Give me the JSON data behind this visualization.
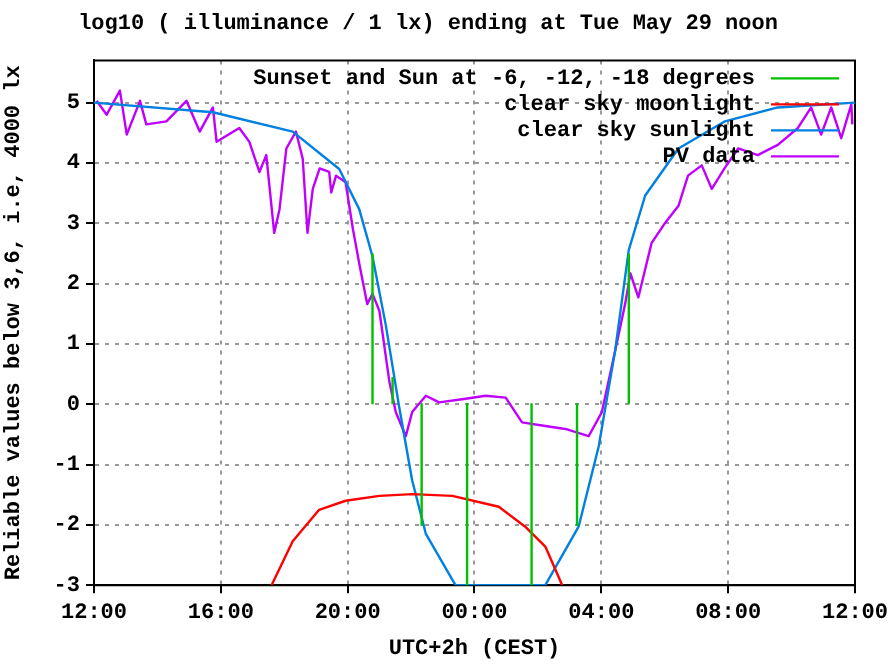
{
  "chart_data": {
    "type": "line",
    "title": "log10 ( illuminance / 1 lx) ending at Tue May 29 noon",
    "xlabel": "UTC+2h (CEST)",
    "ylabel": "Reliable values below 3,6, i.e, 4000 lx",
    "xlim": [
      "--05-28T12:00",
      "--05-29T12:00"
    ],
    "xticks": [
      {
        "value": "--05-28T12:00",
        "label": "12:00"
      },
      {
        "value": "--05-28T16:00",
        "label": "16:00"
      },
      {
        "value": "--05-28T20:00",
        "label": "20:00"
      },
      {
        "value": "--05-29T00:00",
        "label": "00:00"
      },
      {
        "value": "--05-29T04:00",
        "label": "04:00"
      },
      {
        "value": "--05-29T08:00",
        "label": "08:00"
      },
      {
        "value": "--05-29T12:00",
        "label": "12:00"
      }
    ],
    "ylim": [
      -3,
      5.7
    ],
    "yticks": [
      -3,
      -2,
      -1,
      0,
      1,
      2,
      3,
      4,
      5
    ],
    "grid": true,
    "legend": "top right",
    "marker": "none",
    "line_style": "solid",
    "series": [
      {
        "name": "Sunset and Sun at -6, -12, -18 degrees",
        "type": "line",
        "color": "#00c000",
        "x": [
          "--05-28T20:47",
          "--05-28T20:47"
        ],
        "values": [
          0,
          2.5
        ]
      },
      {
        "type": "line",
        "color": "#00c000",
        "x": [
          "--05-28T21:25",
          "--05-28T21:25"
        ],
        "values": [
          0,
          0.45
        ]
      },
      {
        "type": "line",
        "color": "#00c000",
        "x": [
          "--05-28T22:20",
          "--05-28T22:20"
        ],
        "values": [
          0,
          -2
        ]
      },
      {
        "type": "line",
        "color": "#00c000",
        "x": [
          "--05-28T23:46",
          "--05-28T23:46"
        ],
        "values": [
          0,
          -3
        ]
      },
      {
        "type": "line",
        "color": "#00c000",
        "x": [
          "--05-29T01:48",
          "--05-29T01:48"
        ],
        "values": [
          0,
          -3
        ]
      },
      {
        "type": "line",
        "color": "#00c000",
        "x": [
          "--05-29T03:14",
          "--05-29T03:14"
        ],
        "values": [
          0,
          -2
        ]
      },
      {
        "type": "line",
        "color": "#00c000",
        "x": [
          "--05-29T04:52",
          "--05-29T04:52"
        ],
        "values": [
          0,
          2.5
        ]
      },
      {
        "name": "clear sky moonlight",
        "type": "line",
        "color": "#ff0000",
        "x": [
          "--05-28T17:36",
          "--05-28T18:16",
          "--05-28T19:06",
          "--05-28T19:56",
          "--05-28T21:00",
          "--05-28T22:02",
          "--05-28T23:18",
          "--05-29T00:46",
          "--05-29T01:36",
          "--05-29T02:14",
          "--05-29T02:46"
        ],
        "values": [
          -3,
          -2.27,
          -1.75,
          -1.6,
          -1.52,
          -1.49,
          -1.52,
          -1.7,
          -2.03,
          -2.36,
          -3
        ]
      },
      {
        "name": "clear sky sunlight",
        "type": "line",
        "color": "#0080e0",
        "x": [
          "--05-28T12:00",
          "--05-28T15:45",
          "--05-28T18:16",
          "--05-28T19:44",
          "--05-28T20:22",
          "--05-28T20:47",
          "--05-28T21:12",
          "--05-28T21:37",
          "--05-28T22:02",
          "--05-28T22:28",
          "--05-28T23:24",
          "--05-29T02:14",
          "--05-29T03:17",
          "--05-29T03:55",
          "--05-29T04:26",
          "--05-29T04:52",
          "--05-29T05:23",
          "--05-29T06:26",
          "--05-29T07:54",
          "--05-29T09:34",
          "--05-29T12:00"
        ],
        "values": [
          5.0,
          4.84,
          4.52,
          3.9,
          3.23,
          2.45,
          1.32,
          -0.02,
          -1.26,
          -2.15,
          -3,
          -3,
          -2.03,
          -0.7,
          0.88,
          2.56,
          3.46,
          4.24,
          4.69,
          4.92,
          5.0
        ]
      },
      {
        "name": "PV data",
        "type": "line",
        "color": "#c000ff",
        "x": [
          "--05-28T12:05",
          "--05-28T12:24",
          "--05-28T12:49",
          "--05-28T13:02",
          "--05-28T13:27",
          "--05-28T13:39",
          "--05-28T14:17",
          "--05-28T14:55",
          "--05-28T15:20",
          "--05-28T15:45",
          "--05-28T15:52",
          "--05-28T16:35",
          "--05-28T16:54",
          "--05-28T17:13",
          "--05-28T17:26",
          "--05-28T17:41",
          "--05-28T17:51",
          "--05-28T18:04",
          "--05-28T18:22",
          "--05-28T18:35",
          "--05-28T18:44",
          "--05-28T18:54",
          "--05-28T19:07",
          "--05-28T19:25",
          "--05-28T19:29",
          "--05-28T19:38",
          "--05-28T19:56",
          "--05-28T20:10",
          "--05-28T20:22",
          "--05-28T20:37",
          "--05-28T20:47",
          "--05-28T21:00",
          "--05-28T21:19",
          "--05-28T21:31",
          "--05-28T21:50",
          "--05-28T22:02",
          "--05-28T22:28",
          "--05-28T22:53",
          "--05-28T23:43",
          "--05-29T00:21",
          "--05-29T00:59",
          "--05-29T01:30",
          "--05-29T02:14",
          "--05-29T02:52",
          "--05-29T03:36",
          "--05-29T04:01",
          "--05-29T04:26",
          "--05-29T04:45",
          "--05-29T04:55",
          "--05-29T05:10",
          "--05-29T05:35",
          "--05-29T06:01",
          "--05-29T06:26",
          "--05-29T06:44",
          "--05-29T07:10",
          "--05-29T07:29",
          "--05-29T07:53",
          "--05-29T08:19",
          "--05-29T08:56",
          "--05-29T09:34",
          "--05-29T10:12",
          "--05-29T10:37",
          "--05-29T10:56",
          "--05-29T11:15",
          "--05-29T11:34",
          "--05-29T11:53",
          "--05-29T11:55"
        ],
        "values": [
          5.03,
          4.8,
          5.2,
          4.47,
          5.03,
          4.64,
          4.69,
          5.03,
          4.52,
          4.92,
          4.35,
          4.58,
          4.35,
          3.85,
          4.13,
          2.84,
          3.23,
          4.24,
          4.52,
          4.07,
          2.84,
          3.57,
          3.91,
          3.85,
          3.51,
          3.79,
          3.68,
          2.9,
          2.33,
          1.66,
          1.83,
          1.55,
          0.37,
          -0.13,
          -0.53,
          -0.13,
          0.14,
          0.03,
          0.09,
          0.14,
          0.11,
          -0.3,
          -0.36,
          -0.41,
          -0.53,
          -0.13,
          0.88,
          1.66,
          2.17,
          1.77,
          2.67,
          3.01,
          3.29,
          3.79,
          3.96,
          3.57,
          3.91,
          4.24,
          4.13,
          4.3,
          4.58,
          4.92,
          4.47,
          4.92,
          4.41,
          4.97,
          4.64
        ]
      }
    ]
  }
}
